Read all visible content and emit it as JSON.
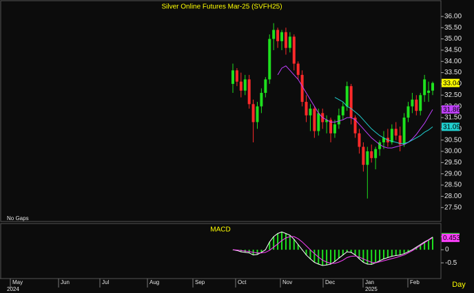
{
  "chart_data": {
    "type": "candlestick",
    "title": "Silver Online Futures Mar-25 (SVFH25)",
    "note": "No Gaps",
    "up_color": "#1ee01e",
    "down_color": "#ff2a2a",
    "open": [
      33.0,
      33.6,
      33.1,
      32.7,
      33.2,
      32.1,
      31.3,
      32.0,
      32.6,
      33.2,
      35.0,
      35.4,
      34.9,
      35.3,
      34.6,
      35.1,
      33.9,
      33.4,
      32.2,
      31.6,
      31.9,
      30.9,
      31.7,
      31.3,
      31.4,
      30.8,
      31.2,
      31.6,
      32.0,
      32.9,
      31.5,
      30.8,
      30.2,
      29.4,
      30.0,
      29.7,
      30.1,
      30.4,
      30.6,
      30.4,
      31.0,
      30.7,
      30.3,
      31.5,
      32.0,
      32.3,
      31.8,
      32.5,
      32.6,
      32.7
    ],
    "high": [
      33.9,
      33.7,
      33.5,
      33.4,
      33.4,
      32.3,
      32.2,
      32.8,
      33.3,
      35.2,
      35.7,
      35.5,
      35.4,
      35.5,
      35.3,
      35.2,
      34.0,
      33.6,
      32.5,
      32.1,
      32.0,
      31.9,
      31.9,
      31.6,
      31.5,
      31.4,
      31.9,
      32.2,
      33.1,
      33.0,
      31.6,
      31.0,
      30.4,
      30.2,
      30.3,
      30.2,
      30.5,
      30.9,
      31.0,
      31.2,
      31.3,
      31.1,
      31.7,
      32.2,
      32.6,
      32.5,
      32.6,
      33.4,
      33.1,
      33.1
    ],
    "low": [
      32.6,
      32.9,
      32.4,
      32.5,
      31.9,
      30.4,
      31.0,
      31.7,
      32.4,
      33.0,
      34.5,
      34.6,
      34.5,
      34.3,
      34.4,
      33.6,
      33.2,
      32.0,
      31.3,
      30.9,
      30.6,
      30.7,
      31.0,
      30.8,
      30.4,
      30.6,
      31.0,
      31.4,
      31.8,
      31.2,
      30.6,
      29.9,
      29.1,
      27.9,
      29.5,
      29.2,
      29.8,
      30.1,
      30.2,
      30.3,
      30.5,
      30.0,
      30.2,
      31.3,
      31.7,
      31.6,
      31.6,
      32.2,
      32.2,
      32.5
    ],
    "close": [
      33.6,
      33.1,
      32.7,
      33.2,
      32.1,
      31.3,
      32.0,
      32.6,
      33.2,
      35.0,
      35.4,
      34.9,
      35.3,
      34.6,
      35.1,
      33.9,
      33.4,
      32.2,
      31.6,
      31.9,
      30.9,
      31.7,
      31.3,
      31.4,
      30.8,
      31.2,
      31.6,
      32.0,
      32.9,
      31.5,
      30.8,
      30.2,
      29.4,
      30.0,
      29.7,
      30.1,
      30.4,
      30.6,
      30.4,
      31.0,
      30.7,
      30.3,
      31.5,
      32.0,
      32.3,
      31.8,
      32.5,
      33.2,
      32.7,
      33.04
    ],
    "last_color": "#ffff00",
    "averages": [
      {
        "color": "#c040ff",
        "values": [
          null,
          null,
          null,
          null,
          null,
          null,
          null,
          null,
          null,
          null,
          null,
          33.4,
          33.7,
          33.8,
          33.6,
          33.4,
          33.2,
          32.9,
          32.6,
          32.3,
          32.0,
          31.7,
          31.5,
          31.4,
          31.3,
          31.3,
          31.35,
          31.4,
          31.5,
          31.5,
          31.4,
          31.2,
          31.0,
          30.8,
          30.6,
          30.45,
          30.3,
          30.2,
          30.15,
          30.15,
          30.2,
          30.25,
          30.3,
          30.4,
          30.55,
          30.75,
          31.0,
          31.25,
          31.55,
          31.86
        ]
      },
      {
        "color": "#20d0d0",
        "values": [
          null,
          null,
          null,
          null,
          null,
          null,
          null,
          null,
          null,
          null,
          null,
          null,
          null,
          null,
          null,
          null,
          null,
          null,
          null,
          null,
          null,
          null,
          null,
          null,
          null,
          32.4,
          32.3,
          32.2,
          32.0,
          31.9,
          31.75,
          31.6,
          31.4,
          31.2,
          31.0,
          30.85,
          30.7,
          30.6,
          30.5,
          30.45,
          30.4,
          30.35,
          30.35,
          30.4,
          30.5,
          30.6,
          30.7,
          30.85,
          30.95,
          31.09
        ]
      }
    ],
    "ylim": [
      26.88,
      36.7
    ],
    "yticks": [
      {
        "value": 27.5,
        "label": "27.50"
      },
      {
        "value": 28,
        "label": "28.00"
      },
      {
        "value": 28.5,
        "label": "28.50"
      },
      {
        "value": 29,
        "label": "29.00"
      },
      {
        "value": 29.5,
        "label": "29.50"
      },
      {
        "value": 30,
        "label": "30.00"
      },
      {
        "value": 30.5,
        "label": "30.50"
      },
      {
        "value": 31,
        "label": "31.00"
      },
      {
        "value": 31.5,
        "label": "31.50"
      },
      {
        "value": 32,
        "label": "32.00"
      },
      {
        "value": 32.5,
        "label": "32.50"
      },
      {
        "value": 33,
        "label": "33.00"
      },
      {
        "value": 33.5,
        "label": "33.50"
      },
      {
        "value": 34,
        "label": "34.00"
      },
      {
        "value": 34.5,
        "label": "34.50"
      },
      {
        "value": 35,
        "label": "35.00"
      },
      {
        "value": 35.5,
        "label": "35.50"
      },
      {
        "value": 36,
        "label": "36.00"
      }
    ],
    "macd": {
      "title": "MACD",
      "color": "#1ee01e",
      "signal_color": "#ff40ff",
      "values": [
        0,
        -0.03,
        -0.08,
        -0.1,
        -0.12,
        -0.2,
        -0.18,
        -0.1,
        0,
        0.3,
        0.5,
        0.62,
        0.68,
        0.62,
        0.55,
        0.4,
        0.2,
        0,
        -0.2,
        -0.35,
        -0.48,
        -0.55,
        -0.6,
        -0.58,
        -0.55,
        -0.45,
        -0.32,
        -0.2,
        -0.08,
        -0.1,
        -0.2,
        -0.35,
        -0.48,
        -0.55,
        -0.56,
        -0.5,
        -0.42,
        -0.35,
        -0.3,
        -0.25,
        -0.22,
        -0.2,
        -0.15,
        -0.08,
        0,
        0.1,
        0.2,
        0.3,
        0.38,
        0.482
      ],
      "signal": [
        0,
        -0.01,
        -0.03,
        -0.05,
        -0.07,
        -0.1,
        -0.12,
        -0.12,
        -0.1,
        -0.02,
        0.1,
        0.22,
        0.35,
        0.45,
        0.5,
        0.5,
        0.42,
        0.3,
        0.15,
        0,
        -0.15,
        -0.28,
        -0.4,
        -0.47,
        -0.52,
        -0.52,
        -0.47,
        -0.4,
        -0.3,
        -0.25,
        -0.24,
        -0.28,
        -0.35,
        -0.42,
        -0.48,
        -0.5,
        -0.46,
        -0.42,
        -0.38,
        -0.34,
        -0.3,
        -0.25,
        -0.2,
        -0.12,
        -0.04,
        0.06,
        0.16,
        0.27,
        0.37,
        0.453
      ],
      "ylim": [
        -1.1,
        1.0
      ],
      "yticks": [
        -0.5,
        0,
        0.5
      ]
    },
    "months": [
      "May",
      "Jun",
      "Jul",
      "Aug",
      "Sep",
      "Oct",
      "Nov",
      "Dec",
      "Jan",
      "Feb"
    ],
    "years": [
      "2024",
      "2025"
    ],
    "period": "Day"
  }
}
